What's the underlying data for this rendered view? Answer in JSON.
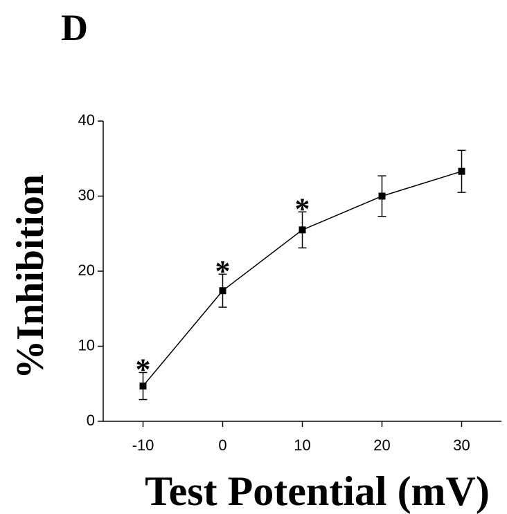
{
  "chart_data": {
    "type": "line",
    "title": "D",
    "xlabel": "Test Potential (mV)",
    "ylabel": "%Inhibition",
    "x": [
      -10,
      0,
      10,
      20,
      30
    ],
    "values": [
      4.7,
      17.4,
      25.5,
      30.0,
      33.3
    ],
    "errors": [
      1.8,
      2.2,
      2.4,
      2.7,
      2.8
    ],
    "color": "#000000",
    "annotations": [
      {
        "text": "*",
        "x": -10
      },
      {
        "text": "*",
        "x": 0
      },
      {
        "text": "*",
        "x": 10
      }
    ],
    "xlim": [
      -15,
      35
    ],
    "ylim": [
      0,
      40
    ],
    "xticks": [
      -10,
      0,
      10,
      20,
      30
    ],
    "yticks": [
      0,
      10,
      20,
      30,
      40
    ]
  }
}
